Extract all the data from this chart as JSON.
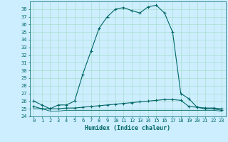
{
  "xlabel": "Humidex (Indice chaleur)",
  "bg_color": "#cceeff",
  "grid_color": "#aaddcc",
  "line_color": "#006666",
  "xlim": [
    -0.5,
    23.5
  ],
  "ylim": [
    24,
    39
  ],
  "xticks": [
    0,
    1,
    2,
    3,
    4,
    5,
    6,
    7,
    8,
    9,
    10,
    11,
    12,
    13,
    14,
    15,
    16,
    17,
    18,
    19,
    20,
    21,
    22,
    23
  ],
  "yticks": [
    24,
    25,
    26,
    27,
    28,
    29,
    30,
    31,
    32,
    33,
    34,
    35,
    36,
    37,
    38
  ],
  "line1_x": [
    0,
    1,
    2,
    3,
    4,
    5,
    6,
    7,
    8,
    9,
    10,
    11,
    12,
    13,
    14,
    15,
    16,
    17,
    18,
    19,
    20,
    21,
    22,
    23
  ],
  "line1_y": [
    26.0,
    25.5,
    25.0,
    25.5,
    25.5,
    26.0,
    29.5,
    32.5,
    35.5,
    37.0,
    38.0,
    38.2,
    37.8,
    37.5,
    38.3,
    38.5,
    37.5,
    35.0,
    27.0,
    26.3,
    25.2,
    25.0,
    25.0,
    24.8
  ],
  "line2_x": [
    0,
    1,
    2,
    3,
    4,
    5,
    6,
    7,
    8,
    9,
    10,
    11,
    12,
    13,
    14,
    15,
    16,
    17,
    18,
    19,
    20,
    21,
    22,
    23
  ],
  "line2_y": [
    25.3,
    25.0,
    25.0,
    25.0,
    25.1,
    25.1,
    25.2,
    25.3,
    25.4,
    25.5,
    25.6,
    25.7,
    25.8,
    25.9,
    26.0,
    26.1,
    26.2,
    26.2,
    26.1,
    25.3,
    25.2,
    25.1,
    25.1,
    25.0
  ],
  "line3_x": [
    0,
    1,
    2,
    3,
    4,
    5,
    6,
    7,
    8,
    9,
    10,
    11,
    12,
    13,
    14,
    15,
    16,
    17,
    18,
    19,
    20,
    21,
    22,
    23
  ],
  "line3_y": [
    25.0,
    25.0,
    24.7,
    24.7,
    24.8,
    24.8,
    24.8,
    24.8,
    24.8,
    24.8,
    24.8,
    24.8,
    24.8,
    24.8,
    24.8,
    24.8,
    24.8,
    24.8,
    24.8,
    24.8,
    24.8,
    24.8,
    24.8,
    24.7
  ]
}
